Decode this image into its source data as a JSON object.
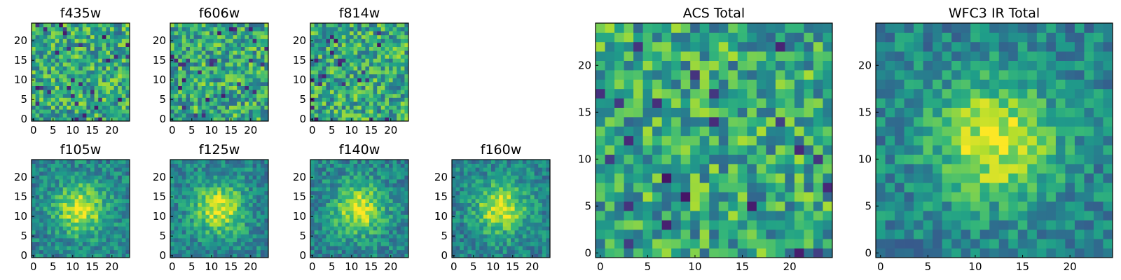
{
  "figure": {
    "description_title": ""
  },
  "chart_data": [
    {
      "type": "heatmap",
      "title": "f435w",
      "colormap": "viridis",
      "grid_size": [
        25,
        25
      ],
      "xlim": [
        0,
        24
      ],
      "ylim": [
        0,
        24
      ],
      "xticks": [
        0,
        5,
        10,
        15,
        20
      ],
      "yticks": [
        0,
        5,
        10,
        15,
        20
      ],
      "pattern": "noise",
      "seed": 11
    },
    {
      "type": "heatmap",
      "title": "f606w",
      "colormap": "viridis",
      "grid_size": [
        25,
        25
      ],
      "xlim": [
        0,
        24
      ],
      "ylim": [
        0,
        24
      ],
      "xticks": [
        0,
        5,
        10,
        15,
        20
      ],
      "yticks": [
        0,
        5,
        10,
        15,
        20
      ],
      "pattern": "noise",
      "seed": 23
    },
    {
      "type": "heatmap",
      "title": "f814w",
      "colormap": "viridis",
      "grid_size": [
        25,
        25
      ],
      "xlim": [
        0,
        24
      ],
      "ylim": [
        0,
        24
      ],
      "xticks": [
        0,
        5,
        10,
        15,
        20
      ],
      "yticks": [
        0,
        5,
        10,
        15,
        20
      ],
      "pattern": "noise",
      "seed": 37
    },
    {
      "type": "heatmap",
      "title": "f105w",
      "colormap": "viridis",
      "grid_size": [
        25,
        25
      ],
      "xlim": [
        0,
        24
      ],
      "ylim": [
        0,
        24
      ],
      "xticks": [
        0,
        5,
        10,
        15,
        20
      ],
      "yticks": [
        0,
        5,
        10,
        15,
        20
      ],
      "pattern": "source",
      "seed": 41
    },
    {
      "type": "heatmap",
      "title": "f125w",
      "colormap": "viridis",
      "grid_size": [
        25,
        25
      ],
      "xlim": [
        0,
        24
      ],
      "ylim": [
        0,
        24
      ],
      "xticks": [
        0,
        5,
        10,
        15,
        20
      ],
      "yticks": [
        0,
        5,
        10,
        15,
        20
      ],
      "pattern": "source",
      "seed": 53
    },
    {
      "type": "heatmap",
      "title": "f140w",
      "colormap": "viridis",
      "grid_size": [
        25,
        25
      ],
      "xlim": [
        0,
        24
      ],
      "ylim": [
        0,
        24
      ],
      "xticks": [
        0,
        5,
        10,
        15,
        20
      ],
      "yticks": [
        0,
        5,
        10,
        15,
        20
      ],
      "pattern": "source",
      "seed": 67
    },
    {
      "type": "heatmap",
      "title": "f160w",
      "colormap": "viridis",
      "grid_size": [
        25,
        25
      ],
      "xlim": [
        0,
        24
      ],
      "ylim": [
        0,
        24
      ],
      "xticks": [
        0,
        5,
        10,
        15,
        20
      ],
      "yticks": [
        0,
        5,
        10,
        15,
        20
      ],
      "pattern": "source",
      "seed": 79
    },
    {
      "type": "heatmap",
      "title": "ACS Total",
      "colormap": "viridis",
      "grid_size": [
        25,
        25
      ],
      "xlim": [
        0,
        24
      ],
      "ylim": [
        0,
        24
      ],
      "xticks": [
        0,
        5,
        10,
        15,
        20
      ],
      "yticks": [
        0,
        5,
        10,
        15,
        20
      ],
      "pattern": "noise",
      "seed": 83
    },
    {
      "type": "heatmap",
      "title": "WFC3 IR Total",
      "colormap": "viridis",
      "grid_size": [
        25,
        25
      ],
      "xlim": [
        0,
        24
      ],
      "ylim": [
        0,
        24
      ],
      "xticks": [
        0,
        5,
        10,
        15,
        20
      ],
      "yticks": [
        0,
        5,
        10,
        15,
        20
      ],
      "pattern": "source",
      "seed": 97
    }
  ]
}
